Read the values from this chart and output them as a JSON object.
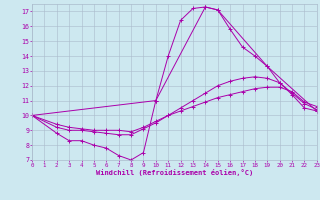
{
  "xlabel": "Windchill (Refroidissement éolien,°C)",
  "bg_color": "#cde8f0",
  "line_color": "#aa00aa",
  "grid_color": "#aabbcc",
  "xlim": [
    0,
    23
  ],
  "ylim": [
    7,
    17.5
  ],
  "yticks": [
    7,
    8,
    9,
    10,
    11,
    12,
    13,
    14,
    15,
    16,
    17
  ],
  "xticks": [
    0,
    1,
    2,
    3,
    4,
    5,
    6,
    7,
    8,
    9,
    10,
    11,
    12,
    13,
    14,
    15,
    16,
    17,
    18,
    19,
    20,
    21,
    22,
    23
  ],
  "lines": [
    {
      "x": [
        0,
        2,
        3,
        4,
        5,
        6,
        7,
        8,
        9,
        10,
        11,
        12,
        13,
        14,
        15,
        16,
        17,
        18,
        19,
        20,
        21,
        22,
        23
      ],
      "y": [
        10.0,
        8.8,
        8.3,
        8.3,
        8.0,
        7.8,
        7.3,
        7.0,
        7.5,
        11.0,
        14.0,
        16.4,
        17.2,
        17.3,
        17.1,
        15.8,
        14.6,
        14.0,
        13.3,
        12.2,
        11.4,
        10.5,
        10.3
      ]
    },
    {
      "x": [
        0,
        10,
        14,
        15,
        19,
        23
      ],
      "y": [
        10.0,
        11.0,
        17.3,
        17.1,
        13.3,
        10.3
      ]
    },
    {
      "x": [
        0,
        2,
        3,
        4,
        5,
        6,
        7,
        8,
        9,
        10,
        11,
        12,
        13,
        14,
        15,
        16,
        17,
        18,
        19,
        20,
        21,
        22,
        23
      ],
      "y": [
        10.0,
        9.2,
        9.0,
        9.0,
        8.9,
        8.8,
        8.7,
        8.7,
        9.1,
        9.5,
        10.0,
        10.5,
        11.0,
        11.5,
        12.0,
        12.3,
        12.5,
        12.6,
        12.5,
        12.2,
        11.5,
        10.8,
        10.4
      ]
    },
    {
      "x": [
        0,
        2,
        3,
        4,
        5,
        6,
        7,
        8,
        9,
        10,
        11,
        12,
        13,
        14,
        15,
        16,
        17,
        18,
        19,
        20,
        21,
        22,
        23
      ],
      "y": [
        10.0,
        9.4,
        9.2,
        9.1,
        9.0,
        9.0,
        9.0,
        8.9,
        9.2,
        9.6,
        10.0,
        10.3,
        10.6,
        10.9,
        11.2,
        11.4,
        11.6,
        11.8,
        11.9,
        11.9,
        11.6,
        10.9,
        10.6
      ]
    }
  ]
}
